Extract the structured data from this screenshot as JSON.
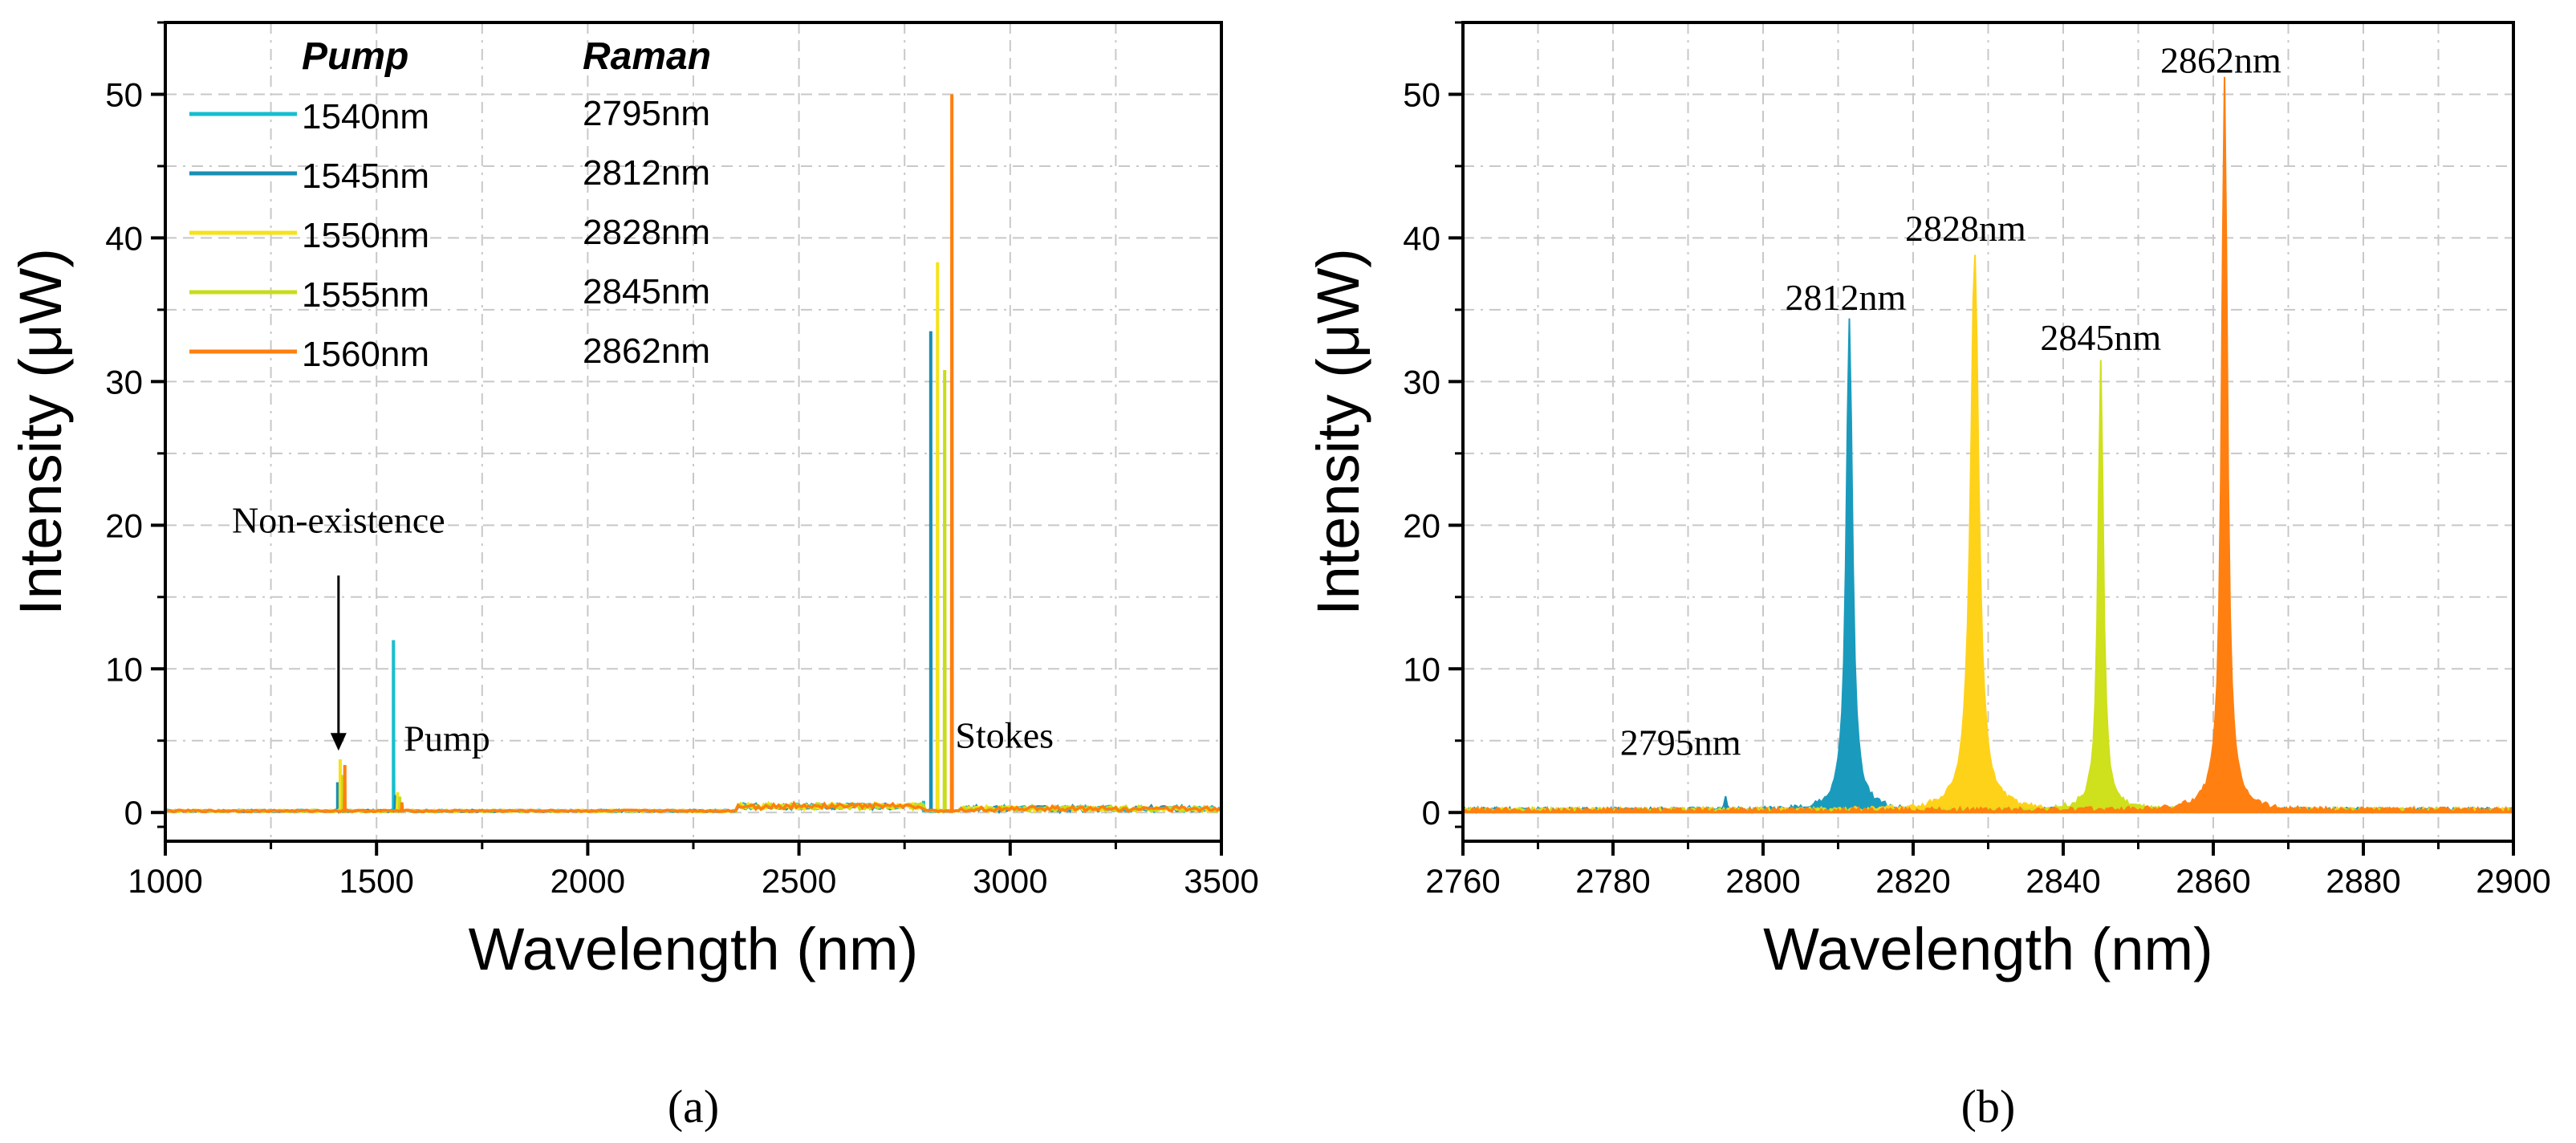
{
  "chart_data": [
    {
      "type": "line",
      "panel_label": "(a)",
      "xlabel": "Wavelength (nm)",
      "ylabel": "Intensity (μW)",
      "xlim": [
        1000,
        3500
      ],
      "ylim": [
        -2,
        55
      ],
      "xticks": [
        1000,
        1500,
        2000,
        2500,
        3000,
        3500
      ],
      "yticks": [
        0,
        10,
        20,
        30,
        40,
        50
      ],
      "grid": true,
      "legend": {
        "placement": "top-left",
        "pump_header": "Pump",
        "raman_header": "Raman",
        "entries": [
          {
            "pump": "1540nm",
            "raman": "2795nm",
            "color": "#17becf"
          },
          {
            "pump": "1545nm",
            "raman": "2812nm",
            "color": "#1a8fb5"
          },
          {
            "pump": "1550nm",
            "raman": "2828nm",
            "color": "#f5e21b"
          },
          {
            "pump": "1555nm",
            "raman": "2845nm",
            "color": "#c8dc1a"
          },
          {
            "pump": "1560nm",
            "raman": "2862nm",
            "color": "#ff7f0e"
          }
        ]
      },
      "series": [
        {
          "name": "1540nm",
          "color": "#17becf",
          "peaks": [
            {
              "x": 1540,
              "y": 12.0
            },
            {
              "x": 1412,
              "y": 0.5
            },
            {
              "x": 2795,
              "y": 0.8
            }
          ]
        },
        {
          "name": "1545nm",
          "color": "#1a8fb5",
          "peaks": [
            {
              "x": 1545,
              "y": 1.2
            },
            {
              "x": 1408,
              "y": 2.1
            },
            {
              "x": 2812,
              "y": 33.5
            }
          ]
        },
        {
          "name": "1550nm",
          "color": "#f5e21b",
          "peaks": [
            {
              "x": 1550,
              "y": 1.4
            },
            {
              "x": 1414,
              "y": 3.7
            },
            {
              "x": 2828,
              "y": 38.3
            }
          ]
        },
        {
          "name": "1555nm",
          "color": "#c8dc1a",
          "peaks": [
            {
              "x": 1555,
              "y": 1.1
            },
            {
              "x": 1420,
              "y": 2.6
            },
            {
              "x": 2845,
              "y": 30.8
            }
          ]
        },
        {
          "name": "1560nm",
          "color": "#ff7f0e",
          "peaks": [
            {
              "x": 1560,
              "y": 0.7
            },
            {
              "x": 1425,
              "y": 3.3
            },
            {
              "x": 2862,
              "y": 50.0
            }
          ]
        }
      ],
      "annotations": [
        {
          "text": "Non-existence",
          "x": 1410,
          "y": 19.5
        },
        {
          "text": "Pump",
          "x": 1565,
          "y": 4.3
        },
        {
          "text": "Stokes",
          "x": 2870,
          "y": 4.5
        }
      ],
      "arrow": {
        "x": 1410,
        "y_from": 16.5,
        "y_to": 4.3
      }
    },
    {
      "type": "area",
      "panel_label": "(b)",
      "xlabel": "Wavelength (nm)",
      "ylabel": "Intensity (μW)",
      "xlim": [
        2760,
        2900
      ],
      "ylim": [
        -2,
        55
      ],
      "xticks": [
        2760,
        2780,
        2800,
        2820,
        2840,
        2860,
        2880,
        2900
      ],
      "yticks": [
        0,
        10,
        20,
        30,
        40,
        50
      ],
      "grid": true,
      "series": [
        {
          "name": "2795nm",
          "color": "#1a8fb5",
          "peak_x": 2795,
          "peak_y": 0.9,
          "width": 0.6
        },
        {
          "name": "2812nm",
          "color": "#1a9bbd",
          "peak_x": 2811.5,
          "peak_y": 33.5,
          "width": 1.2
        },
        {
          "name": "2828nm",
          "color": "#ffd21a",
          "peak_x": 2828.2,
          "peak_y": 38.3,
          "width": 1.6
        },
        {
          "name": "2845nm",
          "color": "#cfe01c",
          "peak_x": 2845,
          "peak_y": 30.8,
          "width": 1.0
        },
        {
          "name": "2862nm",
          "color": "#ff8010",
          "peak_x": 2861.5,
          "peak_y": 50.0,
          "width": 1.1
        }
      ],
      "annotations": [
        {
          "text": "2795nm",
          "x": 2789,
          "y": 4.0
        },
        {
          "text": "2812nm",
          "x": 2811,
          "y": 35.0
        },
        {
          "text": "2828nm",
          "x": 2827,
          "y": 39.8
        },
        {
          "text": "2845nm",
          "x": 2845,
          "y": 32.2
        },
        {
          "text": "2862nm",
          "x": 2861,
          "y": 51.5
        }
      ]
    }
  ]
}
